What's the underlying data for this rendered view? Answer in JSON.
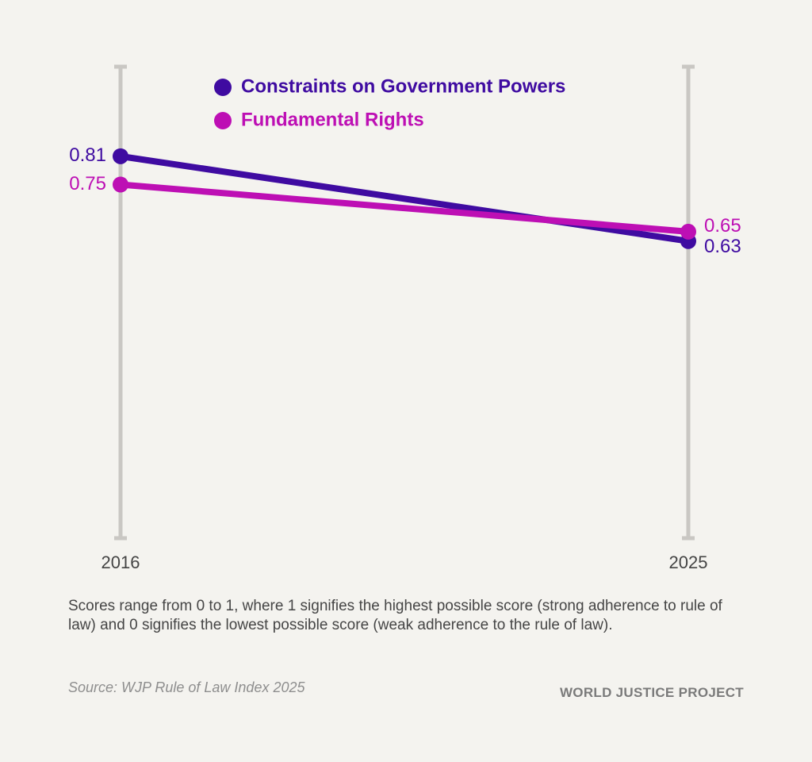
{
  "chart_data": {
    "type": "line",
    "categories": [
      "2016",
      "2025"
    ],
    "series": [
      {
        "name": "Constraints on Government Powers",
        "color": "#3f0ba1",
        "values": [
          0.81,
          0.63
        ]
      },
      {
        "name": "Fundamental Rights",
        "color": "#bd0fb4",
        "values": [
          0.75,
          0.65
        ]
      }
    ],
    "ylim": [
      0,
      1
    ],
    "note": "Scores range from 0 to 1, where 1 signifies the highest possible score (strong adherence to rule of law) and 0 signifies the lowest possible score (weak adherence to the rule of law).",
    "source": "Source: WJP Rule of Law Index 2025",
    "brand": "WORLD JUSTICE PROJECT"
  }
}
